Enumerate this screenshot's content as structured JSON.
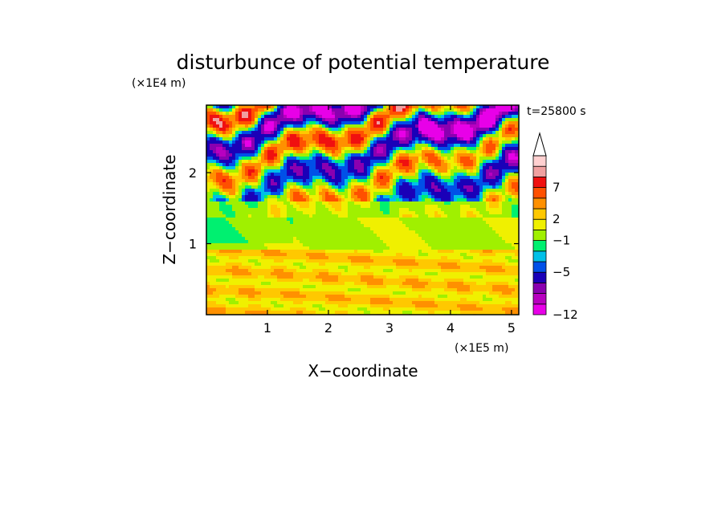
{
  "chart_data": {
    "type": "heatmap",
    "title": "disturbunce of potential temperature",
    "xlabel": "X−coordinate",
    "ylabel": "Z−coordinate",
    "x_scale_label": "(×1E5 m)",
    "y_scale_label": "(×1E4 m)",
    "time_label": "t=25800 s",
    "xlim": [
      0,
      5.12
    ],
    "ylim": [
      0,
      2.95
    ],
    "x_ticks": [
      {
        "value": 1,
        "label": "1"
      },
      {
        "value": 2,
        "label": "2"
      },
      {
        "value": 3,
        "label": "3"
      },
      {
        "value": 4,
        "label": "4"
      },
      {
        "value": 5,
        "label": "5"
      }
    ],
    "y_ticks": [
      {
        "value": 1,
        "label": "1"
      },
      {
        "value": 2,
        "label": "2"
      }
    ],
    "colorbar": {
      "levels": [
        -12,
        -11,
        -10,
        -8,
        -5,
        -3,
        -2,
        -1,
        1,
        2,
        3,
        5,
        7,
        9,
        11
      ],
      "colors": [
        "#e800e8",
        "#b800c0",
        "#8a00b0",
        "#1a00b8",
        "#0050e8",
        "#00c0e8",
        "#00f070",
        "#a0f000",
        "#f0f000",
        "#ffc800",
        "#ff9000",
        "#ff5000",
        "#f01010",
        "#f0a0a0",
        "#ffd0d0"
      ],
      "labeled": [
        {
          "value": -12,
          "label": "−12"
        },
        {
          "value": -5,
          "label": "−5"
        },
        {
          "value": -1,
          "label": "−1"
        },
        {
          "value": 2,
          "label": "2"
        },
        {
          "value": 7,
          "label": "7"
        }
      ],
      "extend": "max"
    },
    "field_description": {
      "bands": [
        {
          "z": [
            0.0,
            0.9
          ],
          "value": 2
        },
        {
          "z": [
            0.9,
            1.35
          ],
          "value": 0
        },
        {
          "z": [
            1.35,
            2.95
          ],
          "value": -3,
          "amplitude": 10
        }
      ]
    }
  }
}
